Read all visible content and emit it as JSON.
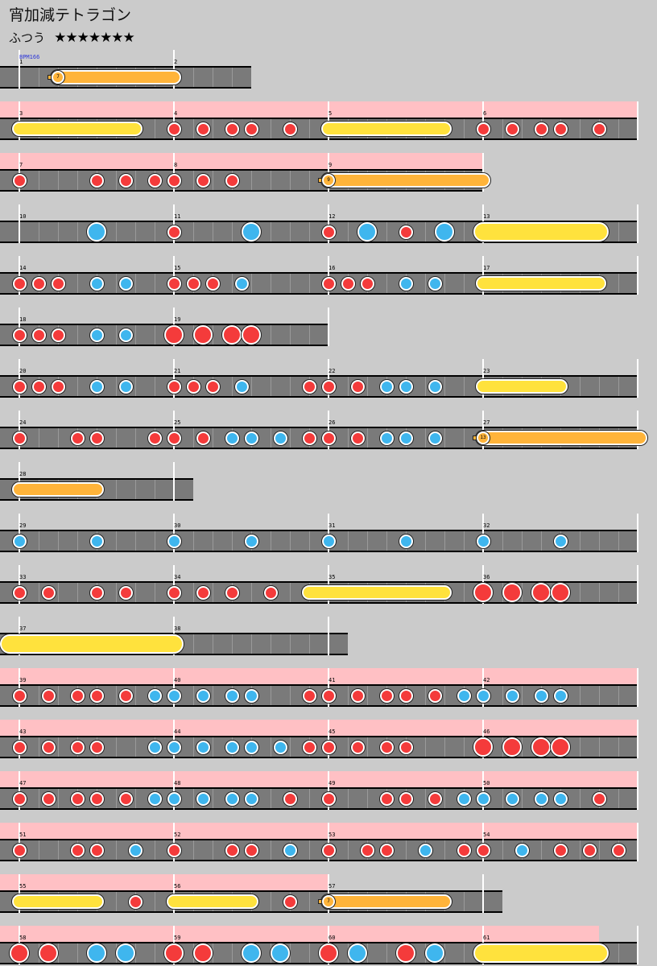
{
  "song": {
    "title": "宵加減テトラゴン",
    "difficulty": "ふつう",
    "stars": "★★★★★★★",
    "bpm_label": "BPM166"
  },
  "colors": {
    "background": "#cbcbcb",
    "track": "#7a7a7a",
    "gogo": "#ffc0c4",
    "don": "#f43b3b",
    "ka": "#3fb6ee",
    "roll": "#ffe23d",
    "balloon": "#ffb43a"
  },
  "rows": [
    {
      "measures": [
        "1",
        "2"
      ],
      "extent": 1.5,
      "gogo": 0,
      "notes": [],
      "rolls": [
        {
          "type": "balloon",
          "count": "7",
          "s": 0.25,
          "e": 1.0
        }
      ]
    },
    {
      "measures": [
        "3",
        "4",
        "5",
        "6"
      ],
      "extent": 4.0,
      "gogo": 4.0,
      "notes": [
        [
          1.0,
          "d"
        ],
        [
          1.1875,
          "d"
        ],
        [
          1.375,
          "d"
        ],
        [
          1.5,
          "d"
        ],
        [
          1.75,
          "d"
        ],
        [
          3.0,
          "d"
        ],
        [
          3.1875,
          "d"
        ],
        [
          3.375,
          "d"
        ],
        [
          3.5,
          "d"
        ],
        [
          3.75,
          "d"
        ]
      ],
      "rolls": [
        {
          "type": "roll",
          "s": 0.0,
          "e": 0.75
        },
        {
          "type": "roll",
          "s": 2.0,
          "e": 2.75
        }
      ]
    },
    {
      "measures": [
        "7",
        "8",
        "9"
      ],
      "extent": 3.0,
      "gogo": 3.0,
      "notes": [
        [
          0.0,
          "d"
        ],
        [
          0.5,
          "d"
        ],
        [
          0.6875,
          "d"
        ],
        [
          0.875,
          "d"
        ],
        [
          1.0,
          "d"
        ],
        [
          1.1875,
          "d"
        ],
        [
          1.375,
          "d"
        ]
      ],
      "rolls": [
        {
          "type": "balloon",
          "count": "9",
          "s": 2.0,
          "e": 3.0
        }
      ]
    },
    {
      "measures": [
        "10",
        "11",
        "12",
        "13"
      ],
      "extent": 4.0,
      "gogo": 0,
      "notes": [
        [
          0.5,
          "K"
        ],
        [
          1.0,
          "d"
        ],
        [
          1.5,
          "K"
        ],
        [
          2.0,
          "d"
        ],
        [
          2.25,
          "K"
        ],
        [
          2.5,
          "d"
        ],
        [
          2.75,
          "K"
        ]
      ],
      "rolls": [
        {
          "type": "roll",
          "big": true,
          "s": 3.0,
          "e": 3.75
        }
      ]
    },
    {
      "measures": [
        "14",
        "15",
        "16",
        "17"
      ],
      "extent": 4.0,
      "gogo": 0,
      "notes": [
        [
          0.0,
          "d"
        ],
        [
          0.125,
          "d"
        ],
        [
          0.25,
          "d"
        ],
        [
          0.5,
          "k"
        ],
        [
          0.6875,
          "k"
        ],
        [
          1.0,
          "d"
        ],
        [
          1.125,
          "d"
        ],
        [
          1.25,
          "d"
        ],
        [
          1.4375,
          "k"
        ],
        [
          2.0,
          "d"
        ],
        [
          2.125,
          "d"
        ],
        [
          2.25,
          "d"
        ],
        [
          2.5,
          "k"
        ],
        [
          2.6875,
          "k"
        ]
      ],
      "rolls": [
        {
          "type": "roll",
          "s": 3.0,
          "e": 3.75
        }
      ]
    },
    {
      "measures": [
        "18",
        "19"
      ],
      "extent": 2.0,
      "gogo": 0,
      "notes": [
        [
          0.0,
          "d"
        ],
        [
          0.125,
          "d"
        ],
        [
          0.25,
          "d"
        ],
        [
          0.5,
          "k"
        ],
        [
          0.6875,
          "k"
        ],
        [
          1.0,
          "D"
        ],
        [
          1.1875,
          "D"
        ],
        [
          1.375,
          "D"
        ],
        [
          1.5,
          "D"
        ]
      ],
      "rolls": []
    },
    {
      "measures": [
        "20",
        "21",
        "22",
        "23"
      ],
      "extent": 4.0,
      "gogo": 0,
      "notes": [
        [
          0.0,
          "d"
        ],
        [
          0.125,
          "d"
        ],
        [
          0.25,
          "d"
        ],
        [
          0.5,
          "k"
        ],
        [
          0.6875,
          "k"
        ],
        [
          1.0,
          "d"
        ],
        [
          1.125,
          "d"
        ],
        [
          1.25,
          "d"
        ],
        [
          1.4375,
          "k"
        ],
        [
          1.875,
          "d"
        ],
        [
          2.0,
          "d"
        ],
        [
          2.1875,
          "d"
        ],
        [
          2.375,
          "k"
        ],
        [
          2.5,
          "k"
        ],
        [
          2.6875,
          "k"
        ]
      ],
      "rolls": [
        {
          "type": "roll",
          "s": 3.0,
          "e": 3.5
        }
      ]
    },
    {
      "measures": [
        "24",
        "25",
        "26",
        "27"
      ],
      "extent": 4.0,
      "gogo": 0,
      "notes": [
        [
          0.0,
          "d"
        ],
        [
          0.375,
          "d"
        ],
        [
          0.5,
          "d"
        ],
        [
          0.875,
          "d"
        ],
        [
          1.0,
          "d"
        ],
        [
          1.1875,
          "d"
        ],
        [
          1.375,
          "k"
        ],
        [
          1.5,
          "k"
        ],
        [
          1.6875,
          "k"
        ],
        [
          1.875,
          "d"
        ],
        [
          2.0,
          "d"
        ],
        [
          2.1875,
          "d"
        ],
        [
          2.375,
          "k"
        ],
        [
          2.5,
          "k"
        ],
        [
          2.6875,
          "k"
        ]
      ],
      "rolls": [
        {
          "type": "balloon",
          "count": "13",
          "s": 3.0,
          "e": 4.0,
          "open": true
        }
      ]
    },
    {
      "measures": [
        "28"
      ],
      "extent": 1.125,
      "gogo": 0,
      "notes": [],
      "rolls": [
        {
          "type": "balloon-tail",
          "s": 0.0,
          "e": 0.5
        }
      ]
    },
    {
      "measures": [
        "29",
        "30",
        "31",
        "32"
      ],
      "extent": 4.0,
      "gogo": 0,
      "notes": [
        [
          0.0,
          "k"
        ],
        [
          0.5,
          "k"
        ],
        [
          1.0,
          "k"
        ],
        [
          1.5,
          "k"
        ],
        [
          2.0,
          "k"
        ],
        [
          2.5,
          "k"
        ],
        [
          3.0,
          "k"
        ],
        [
          3.5,
          "k"
        ]
      ],
      "rolls": []
    },
    {
      "measures": [
        "33",
        "34",
        "35",
        "36"
      ],
      "extent": 4.0,
      "gogo": 0,
      "notes": [
        [
          0.0,
          "d"
        ],
        [
          0.1875,
          "d"
        ],
        [
          0.5,
          "d"
        ],
        [
          0.6875,
          "d"
        ],
        [
          1.0,
          "d"
        ],
        [
          1.1875,
          "d"
        ],
        [
          1.375,
          "d"
        ],
        [
          1.625,
          "d"
        ],
        [
          3.0,
          "D"
        ],
        [
          3.1875,
          "D"
        ],
        [
          3.375,
          "D"
        ],
        [
          3.5,
          "D"
        ]
      ],
      "rolls": [
        {
          "type": "roll",
          "s": 1.875,
          "e": 2.75
        }
      ]
    },
    {
      "measures": [
        "37",
        "38"
      ],
      "extent": 2.125,
      "gogo": 0,
      "notes": [],
      "rolls": [
        {
          "type": "roll",
          "big": true,
          "s": -0.0625,
          "e": 1.0
        }
      ]
    },
    {
      "measures": [
        "39",
        "40",
        "41",
        "42"
      ],
      "extent": 4.0,
      "gogo": 4.0,
      "notes": [
        [
          0.0,
          "d"
        ],
        [
          0.1875,
          "d"
        ],
        [
          0.375,
          "d"
        ],
        [
          0.5,
          "d"
        ],
        [
          0.6875,
          "d"
        ],
        [
          0.875,
          "k"
        ],
        [
          1.0,
          "k"
        ],
        [
          1.1875,
          "k"
        ],
        [
          1.375,
          "k"
        ],
        [
          1.5,
          "k"
        ],
        [
          1.875,
          "d"
        ],
        [
          2.0,
          "d"
        ],
        [
          2.1875,
          "d"
        ],
        [
          2.375,
          "d"
        ],
        [
          2.5,
          "d"
        ],
        [
          2.6875,
          "d"
        ],
        [
          2.875,
          "k"
        ],
        [
          3.0,
          "k"
        ],
        [
          3.1875,
          "k"
        ],
        [
          3.375,
          "k"
        ],
        [
          3.5,
          "k"
        ]
      ],
      "rolls": []
    },
    {
      "measures": [
        "43",
        "44",
        "45",
        "46"
      ],
      "extent": 4.0,
      "gogo": 4.0,
      "notes": [
        [
          0.0,
          "d"
        ],
        [
          0.1875,
          "d"
        ],
        [
          0.375,
          "d"
        ],
        [
          0.5,
          "d"
        ],
        [
          0.875,
          "k"
        ],
        [
          1.0,
          "k"
        ],
        [
          1.1875,
          "k"
        ],
        [
          1.375,
          "k"
        ],
        [
          1.5,
          "k"
        ],
        [
          1.6875,
          "k"
        ],
        [
          1.875,
          "d"
        ],
        [
          2.0,
          "d"
        ],
        [
          2.1875,
          "d"
        ],
        [
          2.375,
          "d"
        ],
        [
          2.5,
          "d"
        ],
        [
          3.0,
          "D"
        ],
        [
          3.1875,
          "D"
        ],
        [
          3.375,
          "D"
        ],
        [
          3.5,
          "D"
        ]
      ],
      "rolls": []
    },
    {
      "measures": [
        "47",
        "48",
        "49",
        "50"
      ],
      "extent": 4.0,
      "gogo": 4.0,
      "notes": [
        [
          0.0,
          "d"
        ],
        [
          0.1875,
          "d"
        ],
        [
          0.375,
          "d"
        ],
        [
          0.5,
          "d"
        ],
        [
          0.6875,
          "d"
        ],
        [
          0.875,
          "k"
        ],
        [
          1.0,
          "k"
        ],
        [
          1.1875,
          "k"
        ],
        [
          1.375,
          "k"
        ],
        [
          1.5,
          "k"
        ],
        [
          1.75,
          "d"
        ],
        [
          2.0,
          "d"
        ],
        [
          2.375,
          "d"
        ],
        [
          2.5,
          "d"
        ],
        [
          2.6875,
          "d"
        ],
        [
          2.875,
          "k"
        ],
        [
          3.0,
          "k"
        ],
        [
          3.1875,
          "k"
        ],
        [
          3.375,
          "k"
        ],
        [
          3.5,
          "k"
        ],
        [
          3.75,
          "d"
        ]
      ],
      "rolls": []
    },
    {
      "measures": [
        "51",
        "52",
        "53",
        "54"
      ],
      "extent": 4.0,
      "gogo": 4.0,
      "notes": [
        [
          0.0,
          "d"
        ],
        [
          0.375,
          "d"
        ],
        [
          0.5,
          "d"
        ],
        [
          0.75,
          "k"
        ],
        [
          1.0,
          "d"
        ],
        [
          1.375,
          "d"
        ],
        [
          1.5,
          "d"
        ],
        [
          1.75,
          "k"
        ],
        [
          2.0,
          "d"
        ],
        [
          2.25,
          "d"
        ],
        [
          2.375,
          "d"
        ],
        [
          2.625,
          "k"
        ],
        [
          2.875,
          "d"
        ],
        [
          3.0,
          "d"
        ],
        [
          3.25,
          "k"
        ],
        [
          3.5,
          "d"
        ],
        [
          3.6875,
          "d"
        ],
        [
          3.875,
          "d"
        ]
      ],
      "rolls": []
    },
    {
      "measures": [
        "55",
        "56",
        "57"
      ],
      "extent": 3.125,
      "gogo": 2.0,
      "notes": [
        [
          0.75,
          "d"
        ],
        [
          1.75,
          "d"
        ]
      ],
      "rolls": [
        {
          "type": "roll",
          "s": 0.0,
          "e": 0.5
        },
        {
          "type": "roll",
          "s": 1.0,
          "e": 1.5
        },
        {
          "type": "balloon",
          "count": "7",
          "s": 2.0,
          "e": 2.75
        }
      ]
    },
    {
      "measures": [
        "58",
        "59",
        "60",
        "61"
      ],
      "extent": 4.0,
      "gogo": 3.75,
      "notes": [
        [
          0.0,
          "D"
        ],
        [
          0.1875,
          "D"
        ],
        [
          0.5,
          "K"
        ],
        [
          0.6875,
          "K"
        ],
        [
          1.0,
          "D"
        ],
        [
          1.1875,
          "D"
        ],
        [
          1.5,
          "K"
        ],
        [
          1.6875,
          "K"
        ],
        [
          2.0,
          "D"
        ],
        [
          2.1875,
          "K"
        ],
        [
          2.5,
          "D"
        ],
        [
          2.6875,
          "K"
        ]
      ],
      "rolls": [
        {
          "type": "roll",
          "big": true,
          "s": 3.0,
          "e": 3.75
        }
      ]
    }
  ]
}
